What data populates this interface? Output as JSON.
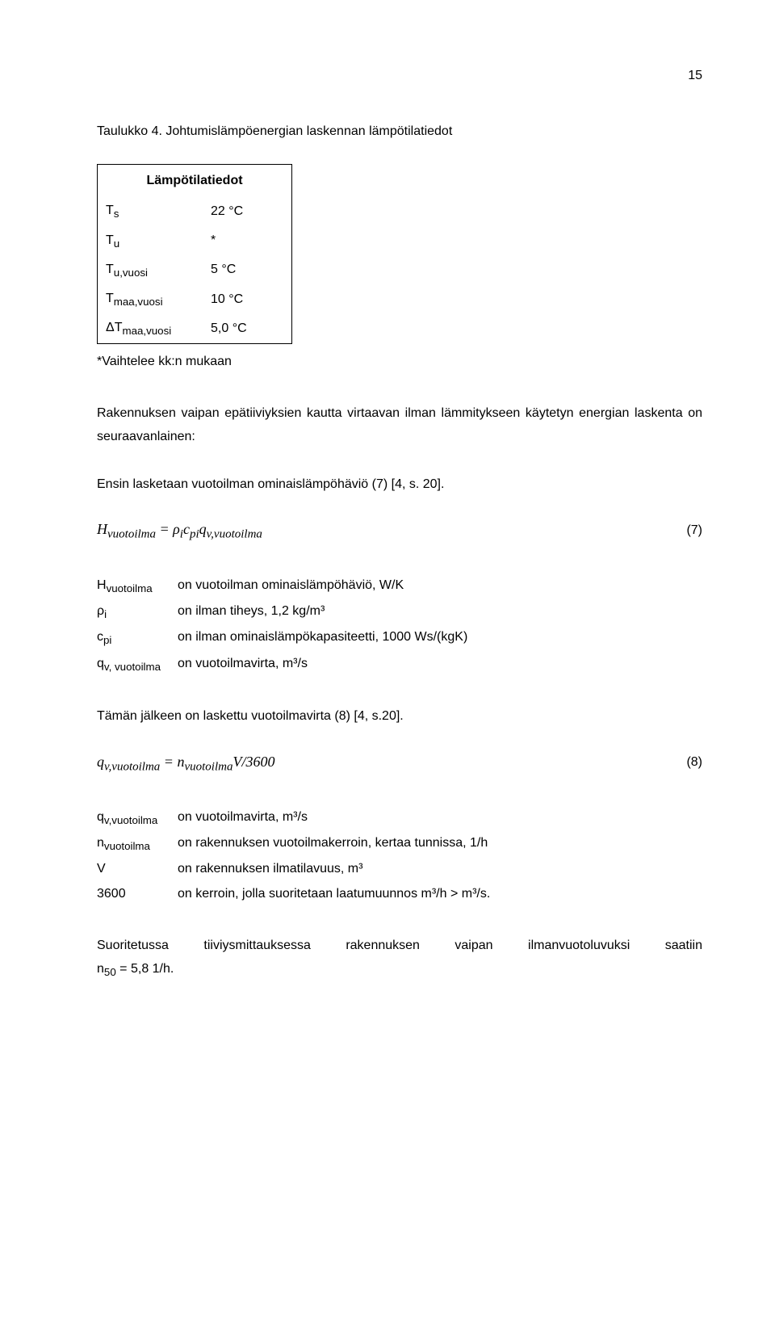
{
  "page_number": "15",
  "caption": "Taulukko 4.  Johtumislämpöenergian laskennan lämpötilatiedot",
  "table": {
    "title": "Lämpötilatiedot",
    "rows": [
      {
        "sym": "T<sub>s</sub>",
        "val": "22 °C"
      },
      {
        "sym": "T<sub>u</sub>",
        "val": "*"
      },
      {
        "sym": "T<sub>u,vuosi</sub>",
        "val": "5 °C"
      },
      {
        "sym": "T<sub>maa,vuosi</sub>",
        "val": "10 °C"
      },
      {
        "sym": "ΔT<sub>maa,vuosi</sub>",
        "val": "5,0 °C"
      }
    ]
  },
  "footnote": "*Vaihtelee kk:n mukaan",
  "para1": "Rakennuksen vaipan epätiiviyksien kautta virtaavan ilman lämmitykseen käytetyn energian laskenta on seuraavanlainen:",
  "sentence1": "Ensin lasketaan vuotoilman ominaislämpöhäviö (7) [4, s. 20].",
  "eq1": {
    "expr": "H<sub>vuotoilma</sub> = ρ<sub>i</sub>c<sub>pi</sub>q<sub>v,vuotoilma</sub>",
    "num": "(7)"
  },
  "defs1": [
    {
      "sym": "H<sub>vuotoilma</sub>",
      "txt": "on vuotoilman ominaislämpöhäviö, W/K"
    },
    {
      "sym": "ρ<sub>i</sub>",
      "txt": "on ilman tiheys, 1,2 kg/m³"
    },
    {
      "sym": "c<sub>pi</sub>",
      "txt": "on ilman ominaislämpökapasiteetti, 1000 Ws/(kgK)"
    },
    {
      "sym": "q<sub>v, vuotoilma</sub>",
      "txt": "on vuotoilmavirta, m³/s"
    }
  ],
  "sentence2": "Tämän jälkeen on laskettu vuotoilmavirta (8) [4, s.20].",
  "eq2": {
    "expr": "q<sub>v,vuotoilma</sub> = n<sub>vuotoilma</sub>V/3600",
    "num": "(8)"
  },
  "defs2": [
    {
      "sym": "q<sub>v,vuotoilma</sub>",
      "txt": "on vuotoilmavirta, m³/s"
    },
    {
      "sym": "n<sub>vuotoilma</sub>",
      "txt": "on rakennuksen vuotoilmakerroin, kertaa tunnissa, 1/h"
    },
    {
      "sym": "V",
      "txt": "on rakennuksen ilmatilavuus, m³"
    },
    {
      "sym": "3600",
      "txt": "on kerroin, jolla suoritetaan laatumuunnos m³/h > m³/s."
    }
  ],
  "last_left": "Suoritetussa",
  "last_mid1": "tiiviysmittauksessa",
  "last_mid2": "rakennuksen",
  "last_mid3": "vaipan",
  "last_mid4": "ilmanvuotoluvuksi",
  "last_right": "saatiin",
  "last_line2": "n<sub>50</sub> = 5,8 1/h."
}
